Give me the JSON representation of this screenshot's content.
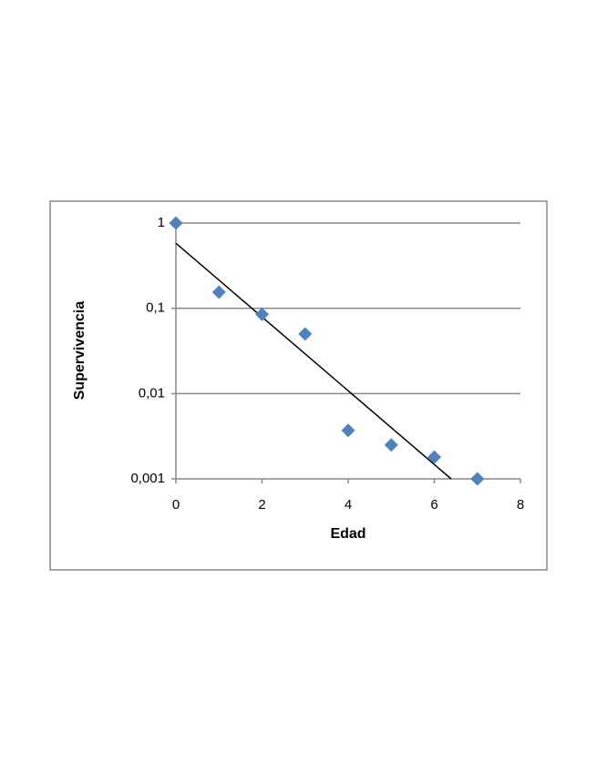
{
  "chart_data": {
    "type": "scatter",
    "x_label": "Edad",
    "y_label": "Supervivencia",
    "series": [
      {
        "color": "#4f81bd",
        "x": [
          0,
          1,
          2,
          3,
          4,
          5,
          6,
          7
        ],
        "values": [
          1,
          0.155,
          0.085,
          0.05,
          0.0037,
          0.0025,
          0.0018,
          0.001
        ]
      }
    ],
    "trendline": {
      "color": "#000000",
      "x": [
        0,
        6.39
      ],
      "values": [
        0.58,
        0.001
      ]
    },
    "xlim": [
      0,
      8
    ],
    "xticks": [
      0,
      2,
      4,
      6,
      8
    ],
    "ylim": [
      0.001,
      1
    ],
    "ylog": true,
    "yticks": [
      {
        "value": 0.001,
        "label": "0,001"
      },
      {
        "value": 0.01,
        "label": "0,01"
      },
      {
        "value": 0.1,
        "label": "0,1"
      },
      1
    ],
    "grid": true
  }
}
